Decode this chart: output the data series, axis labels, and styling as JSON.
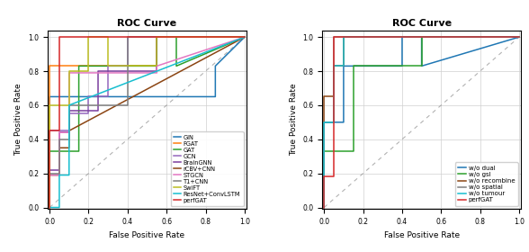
{
  "title": "ROC Curve",
  "xlabel": "False Positive Rate",
  "ylabel": "True Positive Rate",
  "subplot1": {
    "curves": [
      {
        "label": "GIN",
        "color": "#1f77b4",
        "x": [
          0.0,
          0.0,
          0.85,
          0.85,
          1.0
        ],
        "y": [
          0.0,
          0.65,
          0.65,
          0.83,
          1.0
        ]
      },
      {
        "label": "FGAT",
        "color": "#ff7f0e",
        "x": [
          0.0,
          0.0,
          0.55,
          0.55,
          0.65,
          0.65,
          1.0
        ],
        "y": [
          0.0,
          0.83,
          0.83,
          1.0,
          1.0,
          1.0,
          1.0
        ]
      },
      {
        "label": "GAT",
        "color": "#2ca02c",
        "x": [
          0.0,
          0.0,
          0.15,
          0.15,
          0.55,
          0.55,
          0.65,
          0.65,
          1.0
        ],
        "y": [
          0.0,
          0.33,
          0.33,
          0.83,
          0.83,
          1.0,
          1.0,
          0.83,
          1.0
        ]
      },
      {
        "label": "GCN",
        "color": "#9467bd",
        "x": [
          0.0,
          0.0,
          0.1,
          0.1,
          0.2,
          0.2,
          0.3,
          0.3,
          0.4,
          0.4,
          1.0
        ],
        "y": [
          0.0,
          0.45,
          0.45,
          0.55,
          0.55,
          0.65,
          0.65,
          0.83,
          0.83,
          1.0,
          1.0
        ]
      },
      {
        "label": "BrainGNN",
        "color": "#7b3f9e",
        "x": [
          0.0,
          0.0,
          0.05,
          0.05,
          0.1,
          0.1,
          0.25,
          0.25,
          0.55,
          0.55,
          1.0
        ],
        "y": [
          0.0,
          0.22,
          0.22,
          0.44,
          0.44,
          0.57,
          0.57,
          0.8,
          0.8,
          1.0,
          1.0
        ]
      },
      {
        "label": "rCBV+CNN",
        "color": "#8B4513",
        "x": [
          0.0,
          0.0,
          0.05,
          0.05,
          0.1,
          0.1,
          1.0
        ],
        "y": [
          0.0,
          0.19,
          0.19,
          0.35,
          0.35,
          0.45,
          1.0
        ]
      },
      {
        "label": "STGCN",
        "color": "#e377c2",
        "x": [
          0.0,
          0.0,
          0.05,
          0.05,
          0.1,
          0.1,
          0.55,
          0.55,
          1.0
        ],
        "y": [
          0.0,
          0.19,
          0.19,
          0.44,
          0.44,
          0.79,
          0.79,
          0.83,
          1.0
        ]
      },
      {
        "label": "T1+CNN",
        "color": "#7f7f7f",
        "x": [
          0.0,
          0.0,
          0.05,
          0.05,
          0.1,
          0.1,
          0.4,
          0.4,
          1.0
        ],
        "y": [
          0.0,
          0.2,
          0.2,
          0.4,
          0.4,
          0.6,
          0.6,
          1.0,
          1.0
        ]
      },
      {
        "label": "SwiFT",
        "color": "#bcbd22",
        "x": [
          0.0,
          0.0,
          0.1,
          0.1,
          0.2,
          0.2,
          0.3,
          0.3,
          0.55,
          0.55,
          1.0
        ],
        "y": [
          0.0,
          0.6,
          0.6,
          0.8,
          0.8,
          1.0,
          1.0,
          0.83,
          0.83,
          1.0,
          1.0
        ]
      },
      {
        "label": "ResNet+ConvLSTM",
        "color": "#17becf",
        "x": [
          0.0,
          0.0,
          0.05,
          0.05,
          0.1,
          0.1,
          1.0
        ],
        "y": [
          0.0,
          0.0,
          0.0,
          0.19,
          0.19,
          0.6,
          1.0
        ]
      },
      {
        "label": "perfGAT",
        "color": "#d62728",
        "x": [
          0.0,
          0.0,
          0.05,
          0.05,
          1.0
        ],
        "y": [
          0.0,
          0.45,
          0.45,
          1.0,
          1.0
        ]
      }
    ]
  },
  "subplot2": {
    "curves": [
      {
        "label": "w/o dual",
        "color": "#1f77b4",
        "x": [
          0.0,
          0.0,
          0.1,
          0.1,
          0.4,
          0.4,
          0.5,
          0.5,
          1.0
        ],
        "y": [
          0.0,
          0.5,
          0.5,
          0.83,
          0.83,
          1.0,
          1.0,
          0.83,
          1.0
        ]
      },
      {
        "label": "w/o gsl",
        "color": "#2ca02c",
        "x": [
          0.0,
          0.0,
          0.15,
          0.15,
          0.5,
          0.5,
          1.0
        ],
        "y": [
          0.0,
          0.33,
          0.33,
          0.83,
          0.83,
          1.0,
          1.0
        ]
      },
      {
        "label": "w/o recombine",
        "color": "#8B4513",
        "x": [
          0.0,
          0.0,
          0.05,
          0.05,
          0.1,
          0.1,
          1.0
        ],
        "y": [
          0.0,
          0.65,
          0.65,
          0.83,
          0.83,
          1.0,
          1.0
        ]
      },
      {
        "label": "w/o spatial",
        "color": "#7f7f7f",
        "x": [
          0.0,
          0.0,
          0.05,
          0.05,
          0.1,
          0.1,
          1.0
        ],
        "y": [
          0.0,
          0.5,
          0.5,
          1.0,
          1.0,
          1.0,
          1.0
        ]
      },
      {
        "label": "w/o tumour",
        "color": "#17becf",
        "x": [
          0.0,
          0.0,
          0.05,
          0.05,
          0.1,
          0.1,
          1.0
        ],
        "y": [
          0.0,
          0.5,
          0.5,
          0.83,
          0.83,
          1.0,
          1.0
        ]
      },
      {
        "label": "perfGAT",
        "color": "#d62728",
        "x": [
          0.0,
          0.0,
          0.05,
          0.05,
          1.0
        ],
        "y": [
          0.0,
          0.18,
          0.18,
          1.0,
          1.0
        ]
      }
    ]
  }
}
